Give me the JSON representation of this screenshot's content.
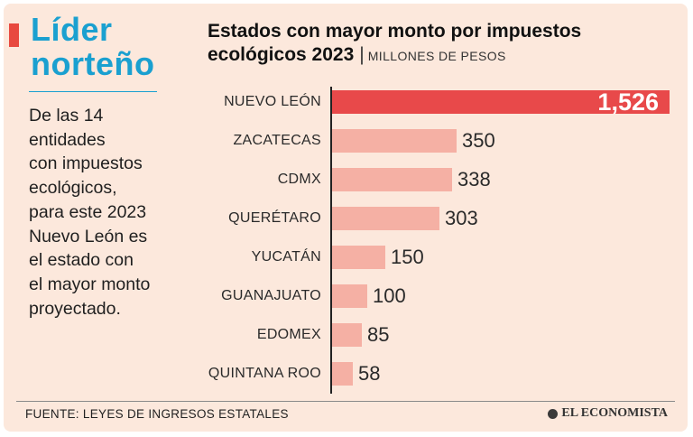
{
  "sidebar": {
    "headline_line1": "Líder",
    "headline_line2": "norteño",
    "body_lines": [
      "De las 14",
      "entidades",
      "con impuestos",
      "ecológicos,",
      "para este 2023",
      "Nuevo León es",
      "el estado con",
      "el mayor monto",
      "proyectado."
    ]
  },
  "footer": {
    "source": "FUENTE: LEYES DE INGRESOS ESTATALES",
    "brand": "EL ECONOMISTA"
  },
  "colors": {
    "background": "#fce8dc",
    "highlight_bar": "#e8494a",
    "regular_bar": "#f5b0a4",
    "headline": "#1aa0d0",
    "accent": "#e8493f"
  },
  "chart_data": {
    "type": "bar",
    "orientation": "horizontal",
    "title_line1": "Estados con mayor monto por impuestos",
    "title_line2": "ecológicos 2023",
    "unit": "MILLONES DE PESOS",
    "categories": [
      "NUEVO LEÓN",
      "ZACATECAS",
      "CDMX",
      "QUERÉTARO",
      "YUCATÁN",
      "GUANAJUATO",
      "EDOMEX",
      "QUINTANA ROO"
    ],
    "values": [
      1526,
      350,
      338,
      303,
      150,
      100,
      85,
      58
    ],
    "value_labels": [
      "1,526",
      "350",
      "338",
      "303",
      "150",
      "100",
      "85",
      "58"
    ],
    "highlight_index": 0,
    "broken_axis": true
  }
}
